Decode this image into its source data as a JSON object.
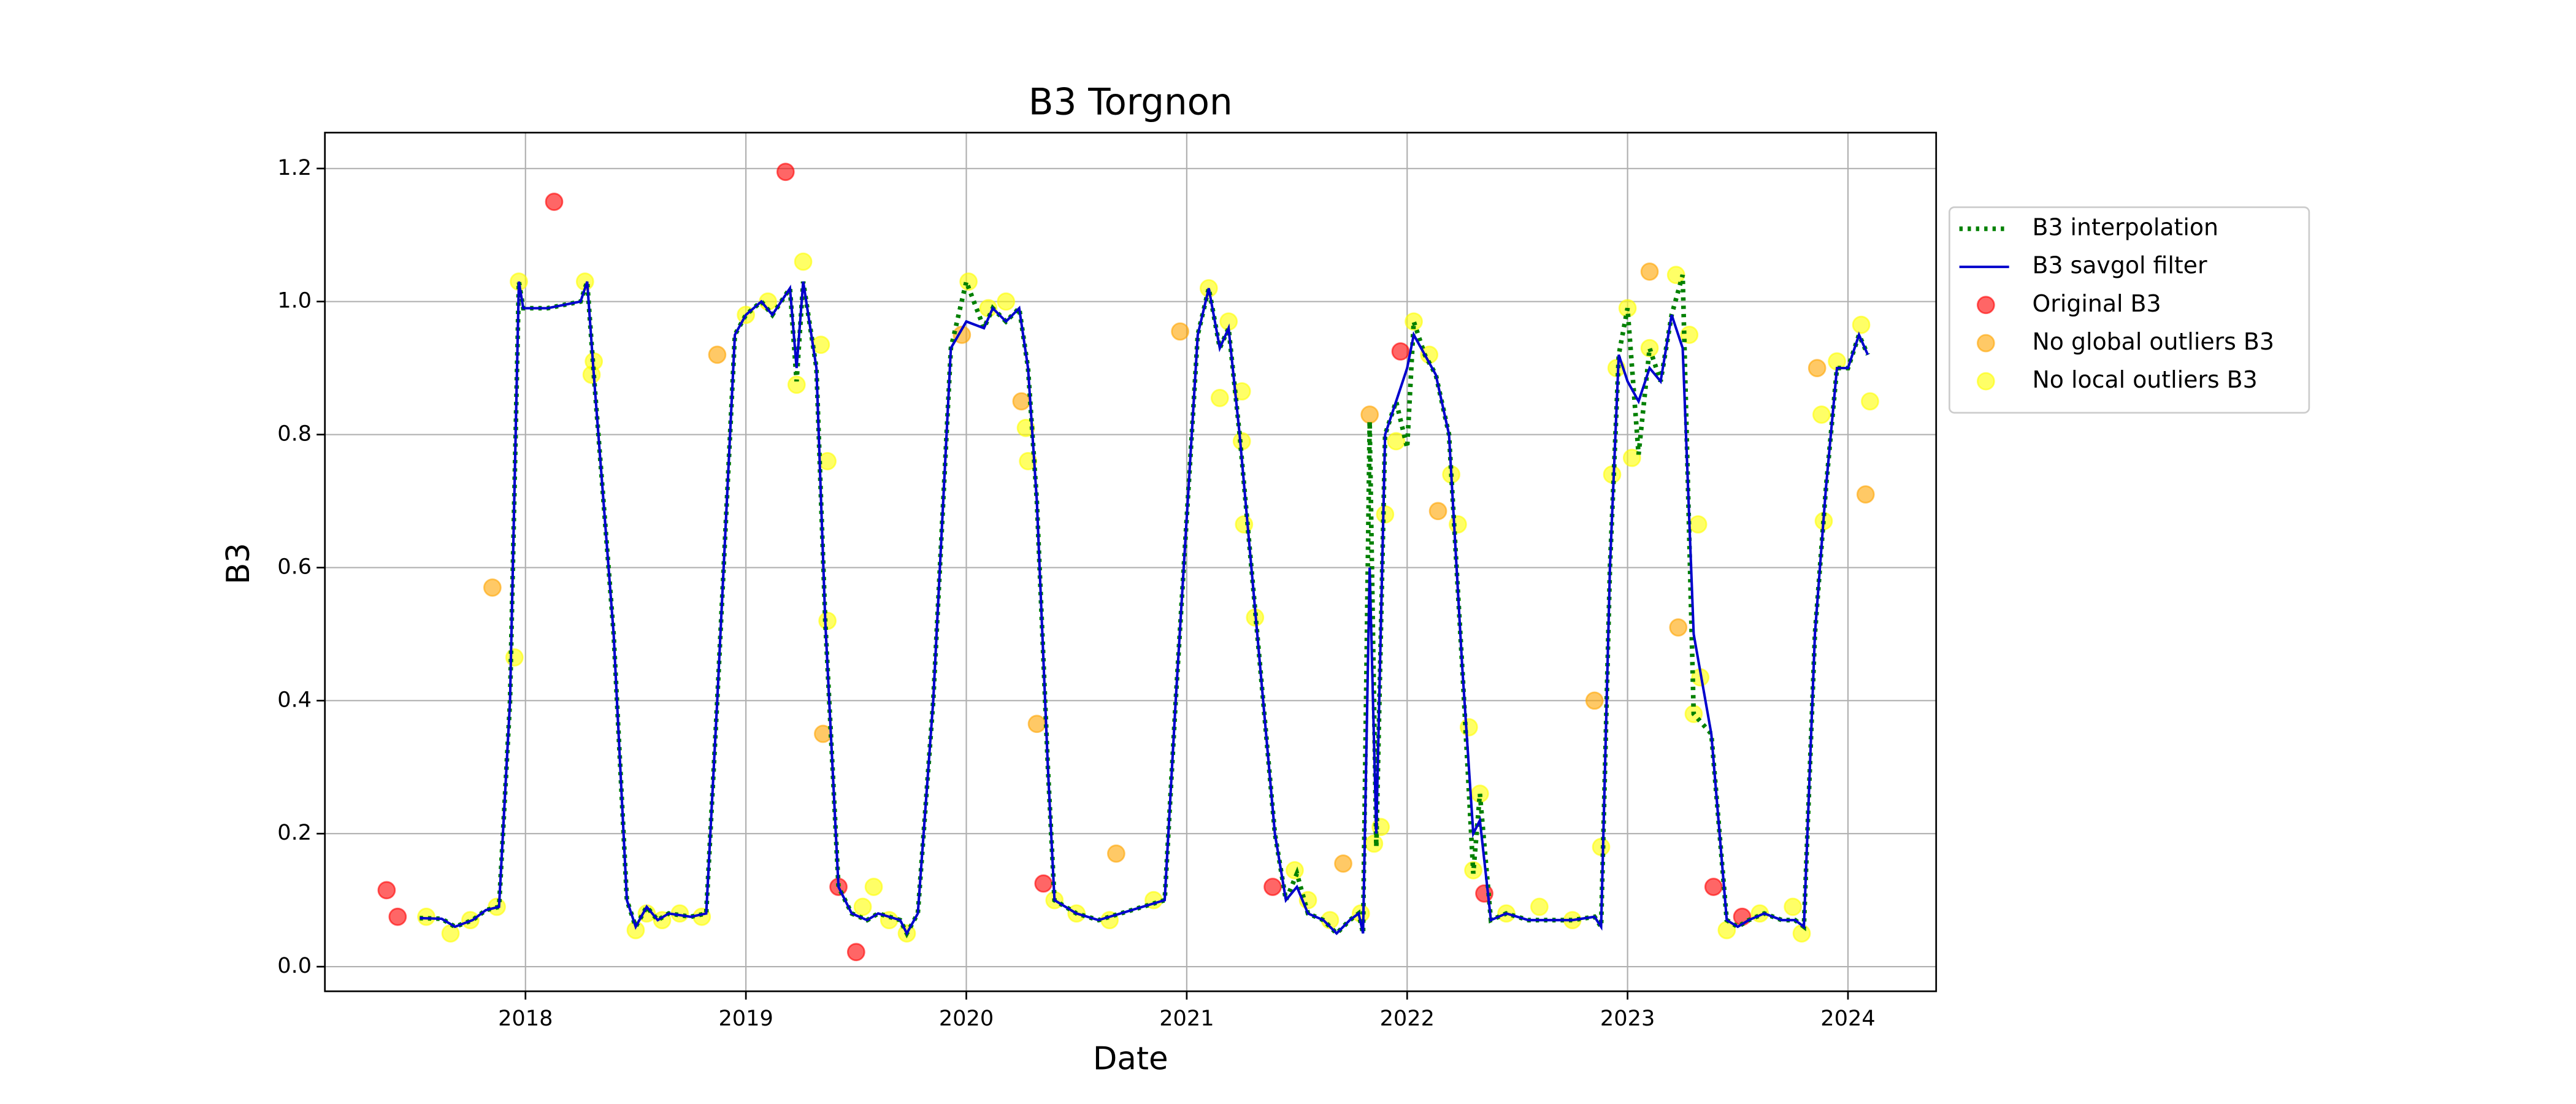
{
  "chart_data": {
    "type": "line",
    "title": "B3 Torgnon",
    "x_label": "Date",
    "y_label": "B3",
    "xlim": [
      2017.09,
      2024.4
    ],
    "xticks": [
      2018,
      2019,
      2020,
      2021,
      2022,
      2023,
      2024
    ],
    "ylim": [
      -0.037,
      1.254
    ],
    "yticks": [
      {
        "value": 0,
        "label": "0.0"
      },
      {
        "value": 0.2,
        "label": "0.2"
      },
      {
        "value": 0.4,
        "label": "0.4"
      },
      {
        "value": 0.6,
        "label": "0.6"
      },
      {
        "value": 0.8,
        "label": "0.8"
      },
      {
        "value": 1,
        "label": "1.0"
      },
      {
        "value": 1.2,
        "label": "1.2"
      }
    ],
    "grid": true,
    "legend": "outside upper right",
    "series": [
      {
        "name": "B3 interpolation",
        "color": "#008000",
        "style": "dotted",
        "x": [
          2017.52,
          2017.62,
          2017.68,
          2017.76,
          2017.82,
          2017.88,
          2017.93,
          2017.97,
          2017.99,
          2018.1,
          2018.25,
          2018.28,
          2018.31,
          2018.4,
          2018.46,
          2018.5,
          2018.55,
          2018.6,
          2018.65,
          2018.75,
          2018.82,
          2018.87,
          2018.95,
          2019.0,
          2019.07,
          2019.12,
          2019.2,
          2019.23,
          2019.26,
          2019.32,
          2019.36,
          2019.42,
          2019.48,
          2019.55,
          2019.6,
          2019.7,
          2019.73,
          2019.78,
          2019.85,
          2019.93,
          2020.0,
          2020.08,
          2020.12,
          2020.18,
          2020.24,
          2020.28,
          2020.32,
          2020.37,
          2020.4,
          2020.5,
          2020.6,
          2020.7,
          2020.8,
          2020.9,
          2020.95,
          2021.05,
          2021.1,
          2021.15,
          2021.19,
          2021.24,
          2021.32,
          2021.4,
          2021.45,
          2021.5,
          2021.55,
          2021.62,
          2021.68,
          2021.74,
          2021.78,
          2021.8,
          2021.83,
          2021.86,
          2021.9,
          2021.95,
          2022.0,
          2022.03,
          2022.08,
          2022.13,
          2022.19,
          2022.25,
          2022.3,
          2022.33,
          2022.38,
          2022.45,
          2022.55,
          2022.65,
          2022.75,
          2022.85,
          2022.88,
          2022.92,
          2022.96,
          2023.0,
          2023.05,
          2023.1,
          2023.15,
          2023.2,
          2023.25,
          2023.3,
          2023.38,
          2023.45,
          2023.5,
          2023.55,
          2023.62,
          2023.7,
          2023.76,
          2023.8,
          2023.85,
          2023.9,
          2023.95,
          2024.0,
          2024.05,
          2024.09
        ],
        "values": [
          0.073,
          0.072,
          0.06,
          0.07,
          0.085,
          0.09,
          0.4,
          1.03,
          0.99,
          0.99,
          1.0,
          1.03,
          0.89,
          0.5,
          0.1,
          0.06,
          0.09,
          0.07,
          0.08,
          0.075,
          0.08,
          0.4,
          0.95,
          0.98,
          1.0,
          0.98,
          1.02,
          0.88,
          1.03,
          0.9,
          0.52,
          0.12,
          0.08,
          0.07,
          0.08,
          0.07,
          0.05,
          0.08,
          0.4,
          0.93,
          1.03,
          0.96,
          0.99,
          0.97,
          0.99,
          0.9,
          0.7,
          0.3,
          0.1,
          0.08,
          0.07,
          0.08,
          0.09,
          0.1,
          0.4,
          0.95,
          1.02,
          0.93,
          0.96,
          0.8,
          0.5,
          0.2,
          0.1,
          0.14,
          0.08,
          0.07,
          0.05,
          0.07,
          0.08,
          0.05,
          0.82,
          0.18,
          0.8,
          0.85,
          0.78,
          0.97,
          0.92,
          0.89,
          0.8,
          0.45,
          0.14,
          0.26,
          0.07,
          0.08,
          0.07,
          0.07,
          0.07,
          0.075,
          0.06,
          0.6,
          0.92,
          0.99,
          0.77,
          0.93,
          0.88,
          0.98,
          1.04,
          0.38,
          0.35,
          0.07,
          0.06,
          0.07,
          0.08,
          0.07,
          0.07,
          0.06,
          0.5,
          0.72,
          0.9,
          0.9,
          0.95,
          0.92
        ]
      },
      {
        "name": "B3 savgol filter",
        "color": "#0000cc",
        "style": "solid",
        "x": [
          2017.52,
          2017.62,
          2017.68,
          2017.76,
          2017.82,
          2017.88,
          2017.93,
          2017.97,
          2017.99,
          2018.1,
          2018.25,
          2018.28,
          2018.31,
          2018.4,
          2018.46,
          2018.5,
          2018.55,
          2018.6,
          2018.65,
          2018.75,
          2018.82,
          2018.87,
          2018.95,
          2019.0,
          2019.07,
          2019.12,
          2019.2,
          2019.23,
          2019.26,
          2019.32,
          2019.36,
          2019.42,
          2019.48,
          2019.55,
          2019.6,
          2019.7,
          2019.73,
          2019.78,
          2019.85,
          2019.93,
          2020.0,
          2020.08,
          2020.12,
          2020.18,
          2020.24,
          2020.28,
          2020.32,
          2020.37,
          2020.4,
          2020.5,
          2020.6,
          2020.7,
          2020.8,
          2020.9,
          2020.95,
          2021.05,
          2021.1,
          2021.15,
          2021.19,
          2021.24,
          2021.32,
          2021.4,
          2021.45,
          2021.5,
          2021.55,
          2021.62,
          2021.68,
          2021.74,
          2021.78,
          2021.8,
          2021.83,
          2021.86,
          2021.9,
          2021.95,
          2022.0,
          2022.03,
          2022.08,
          2022.13,
          2022.19,
          2022.25,
          2022.3,
          2022.33,
          2022.38,
          2022.45,
          2022.55,
          2022.65,
          2022.75,
          2022.85,
          2022.88,
          2022.92,
          2022.96,
          2023.0,
          2023.05,
          2023.1,
          2023.15,
          2023.2,
          2023.25,
          2023.3,
          2023.38,
          2023.45,
          2023.5,
          2023.55,
          2023.62,
          2023.7,
          2023.76,
          2023.8,
          2023.85,
          2023.9,
          2023.95,
          2024.0,
          2024.05,
          2024.09
        ],
        "values": [
          0.073,
          0.072,
          0.06,
          0.07,
          0.085,
          0.09,
          0.4,
          1.03,
          0.99,
          0.99,
          1.0,
          1.03,
          0.89,
          0.5,
          0.1,
          0.06,
          0.09,
          0.07,
          0.08,
          0.075,
          0.08,
          0.4,
          0.95,
          0.98,
          1.0,
          0.98,
          1.02,
          0.9,
          1.03,
          0.9,
          0.52,
          0.12,
          0.08,
          0.07,
          0.08,
          0.07,
          0.05,
          0.08,
          0.4,
          0.93,
          0.97,
          0.96,
          0.99,
          0.97,
          0.99,
          0.9,
          0.7,
          0.3,
          0.1,
          0.08,
          0.07,
          0.08,
          0.09,
          0.1,
          0.4,
          0.95,
          1.02,
          0.93,
          0.96,
          0.8,
          0.5,
          0.2,
          0.1,
          0.12,
          0.08,
          0.07,
          0.05,
          0.07,
          0.08,
          0.05,
          0.6,
          0.2,
          0.8,
          0.85,
          0.9,
          0.95,
          0.92,
          0.89,
          0.8,
          0.45,
          0.2,
          0.22,
          0.07,
          0.08,
          0.07,
          0.07,
          0.07,
          0.075,
          0.06,
          0.6,
          0.92,
          0.88,
          0.85,
          0.9,
          0.88,
          0.98,
          0.93,
          0.5,
          0.35,
          0.07,
          0.06,
          0.07,
          0.08,
          0.07,
          0.07,
          0.06,
          0.5,
          0.72,
          0.9,
          0.9,
          0.95,
          0.92
        ]
      },
      {
        "name": "Original B3",
        "color": "#ff0000",
        "marker": true,
        "x": [
          2017.37,
          2017.42,
          2018.13,
          2019.18,
          2019.42,
          2019.5,
          2020.35,
          2021.39,
          2021.97,
          2022.35,
          2023.39,
          2023.52
        ],
        "values": [
          0.115,
          0.075,
          1.15,
          1.195,
          0.12,
          0.022,
          0.125,
          0.12,
          0.925,
          0.11,
          0.12,
          0.075
        ]
      },
      {
        "name": "No global outliers B3",
        "color": "#ffa500",
        "marker": true,
        "x": [
          2017.85,
          2018.87,
          2019.35,
          2019.98,
          2020.25,
          2020.32,
          2020.68,
          2020.97,
          2021.71,
          2021.83,
          2022.14,
          2022.85,
          2023.1,
          2023.23,
          2023.86,
          2024.08
        ],
        "values": [
          0.57,
          0.92,
          0.35,
          0.95,
          0.85,
          0.365,
          0.17,
          0.955,
          0.155,
          0.83,
          0.685,
          0.4,
          1.045,
          0.51,
          0.9,
          0.71
        ]
      },
      {
        "name": "No local outliers B3",
        "color": "#ffff00",
        "marker": true,
        "x": [
          2017.55,
          2017.66,
          2017.75,
          2017.87,
          2017.95,
          2017.97,
          2018.27,
          2018.3,
          2018.31,
          2018.5,
          2018.55,
          2018.62,
          2018.7,
          2018.8,
          2019.0,
          2019.1,
          2019.23,
          2019.26,
          2019.34,
          2019.37,
          2019.37,
          2019.53,
          2019.58,
          2019.65,
          2019.73,
          2020.01,
          2020.1,
          2020.18,
          2020.27,
          2020.28,
          2020.4,
          2020.5,
          2020.65,
          2020.85,
          2021.1,
          2021.15,
          2021.19,
          2021.25,
          2021.25,
          2021.26,
          2021.31,
          2021.49,
          2021.55,
          2021.65,
          2021.79,
          2021.85,
          2021.88,
          2021.9,
          2021.95,
          2022.03,
          2022.1,
          2022.2,
          2022.23,
          2022.28,
          2022.3,
          2022.33,
          2022.45,
          2022.6,
          2022.75,
          2022.88,
          2022.93,
          2022.95,
          2023.0,
          2023.02,
          2023.1,
          2023.22,
          2023.28,
          2023.3,
          2023.32,
          2023.33,
          2023.45,
          2023.6,
          2023.75,
          2023.79,
          2023.88,
          2023.89,
          2023.95,
          2024.06,
          2024.1
        ],
        "values": [
          0.075,
          0.05,
          0.07,
          0.09,
          0.465,
          1.03,
          1.03,
          0.89,
          0.91,
          0.055,
          0.08,
          0.07,
          0.08,
          0.075,
          0.98,
          1.0,
          0.875,
          1.06,
          0.935,
          0.76,
          0.52,
          0.09,
          0.12,
          0.07,
          0.05,
          1.03,
          0.99,
          1.0,
          0.81,
          0.76,
          0.1,
          0.08,
          0.07,
          0.1,
          1.02,
          0.855,
          0.97,
          0.865,
          0.79,
          0.665,
          0.525,
          0.145,
          0.1,
          0.07,
          0.08,
          0.185,
          0.21,
          0.68,
          0.79,
          0.97,
          0.92,
          0.74,
          0.665,
          0.36,
          0.145,
          0.26,
          0.08,
          0.09,
          0.07,
          0.18,
          0.74,
          0.9,
          0.99,
          0.765,
          0.93,
          1.04,
          0.95,
          0.38,
          0.665,
          0.435,
          0.055,
          0.08,
          0.09,
          0.05,
          0.83,
          0.67,
          0.91,
          0.965,
          0.85
        ]
      }
    ]
  }
}
